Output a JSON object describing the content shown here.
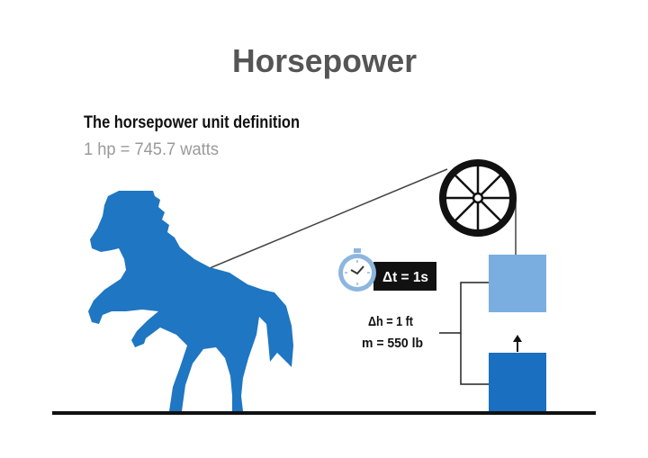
{
  "title": "Horsepower",
  "subtitle": "The horsepower unit definition",
  "definition": "1 hp = 745.7 watts",
  "time_label": "Δt = 1s",
  "height_label": "Δh = 1 ft",
  "mass_label": "m = 550 lb",
  "icons": {
    "horse": "rearing-horse-silhouette",
    "pulley": "pulley-wheel-icon",
    "timer": "stopwatch-icon",
    "arrow": "arrow-up-icon"
  },
  "colors": {
    "title": "#555555",
    "subtitle": "#111111",
    "definition": "#9a9a9a",
    "horse": "#1f76c2",
    "box_lifted": "#7aaee0",
    "box_start": "#1a6fc0",
    "stopwatch": "#8cb6df",
    "label_bg": "#111111"
  }
}
